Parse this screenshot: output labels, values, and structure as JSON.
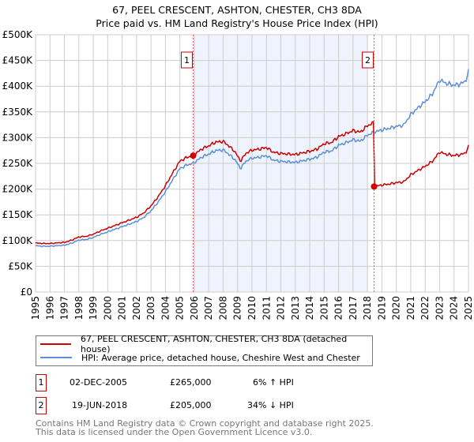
{
  "chart_data": {
    "type": "line",
    "title": "67, PEEL CRESCENT, ASHTON, CHESTER, CH3 8DA",
    "subtitle": "Price paid vs. HM Land Registry's House Price Index (HPI)",
    "xlim": [
      1995,
      2025
    ],
    "ylim": [
      0,
      500000
    ],
    "yticks": [
      {
        "v": 0,
        "label": "£0"
      },
      {
        "v": 50000,
        "label": "£50K"
      },
      {
        "v": 100000,
        "label": "£100K"
      },
      {
        "v": 150000,
        "label": "£150K"
      },
      {
        "v": 200000,
        "label": "£200K"
      },
      {
        "v": 250000,
        "label": "£250K"
      },
      {
        "v": 300000,
        "label": "£300K"
      },
      {
        "v": 350000,
        "label": "£350K"
      },
      {
        "v": 400000,
        "label": "£400K"
      },
      {
        "v": 450000,
        "label": "£450K"
      },
      {
        "v": 500000,
        "label": "£500K"
      }
    ],
    "xticks": [
      "1995",
      "1996",
      "1997",
      "1998",
      "1999",
      "2000",
      "2001",
      "2002",
      "2003",
      "2004",
      "2005",
      "2006",
      "2007",
      "2008",
      "2009",
      "2010",
      "2011",
      "2012",
      "2013",
      "2014",
      "2015",
      "2016",
      "2017",
      "2018",
      "2019",
      "2020",
      "2021",
      "2022",
      "2023",
      "2024",
      "2025"
    ],
    "hpi": {
      "name": "HPI: Average price, detached house, Cheshire West and Chester",
      "color": "#5b8fd6",
      "x": [
        1995,
        1995.5,
        1996,
        1996.5,
        1997,
        1997.5,
        1998,
        1998.5,
        1999,
        1999.5,
        2000,
        2000.5,
        2001,
        2001.5,
        2002,
        2002.5,
        2003,
        2003.5,
        2004,
        2004.5,
        2005,
        2005.5,
        2005.92,
        2006.5,
        2007,
        2007.5,
        2008,
        2008.3,
        2008.8,
        2009.2,
        2009.6,
        2010,
        2010.5,
        2011,
        2011.5,
        2012,
        2012.5,
        2013,
        2013.5,
        2014,
        2014.5,
        2015,
        2015.5,
        2016,
        2016.5,
        2017,
        2017.5,
        2018,
        2018.46,
        2019,
        2019.5,
        2020,
        2020.5,
        2021,
        2021.5,
        2022,
        2022.5,
        2023,
        2023.5,
        2024,
        2024.5,
        2024.8,
        2025
      ],
      "y": [
        90000,
        89000,
        89000,
        90000,
        91000,
        95000,
        101000,
        102000,
        106000,
        112000,
        117000,
        122000,
        127000,
        132000,
        137000,
        145000,
        158000,
        175000,
        195000,
        218000,
        240000,
        247000,
        250000,
        262000,
        268000,
        275000,
        276000,
        270000,
        258000,
        240000,
        255000,
        260000,
        262000,
        265000,
        256000,
        254000,
        253000,
        252000,
        255000,
        258000,
        262000,
        272000,
        274000,
        285000,
        290000,
        296000,
        293000,
        305000,
        311000,
        315000,
        318000,
        322000,
        324000,
        345000,
        358000,
        370000,
        385000,
        412000,
        405000,
        402000,
        405000,
        410000,
        428000
      ]
    },
    "price_paid": {
      "name": "67, PEEL CRESCENT, ASHTON, CHESTER, CH3 8DA (detached house)",
      "color": "#cc0000",
      "ratio_before": 1.06,
      "ratio_after": 0.66
    },
    "sales": [
      {
        "id": "1",
        "x": 2005.92,
        "y": 265000,
        "date": "02-DEC-2005",
        "price": "£265,000",
        "hpi": "6% ↑ HPI"
      },
      {
        "id": "2",
        "x": 2018.46,
        "y": 205000,
        "date": "19-JUN-2018",
        "price": "£205,000",
        "hpi": "34% ↓ HPI"
      }
    ],
    "shade": [
      2005.92,
      2018.0
    ]
  },
  "footer": {
    "line1": "Contains HM Land Registry data © Crown copyright and database right 2025.",
    "line2": "This data is licensed under the Open Government Licence v3.0."
  }
}
